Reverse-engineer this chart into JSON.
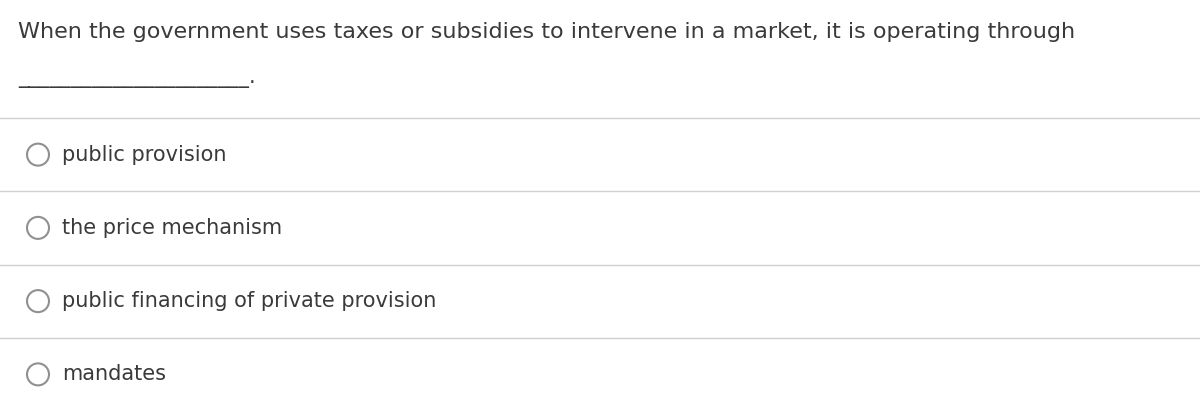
{
  "question_line1": "When the government uses taxes or subsidies to intervene in a market, it is operating through",
  "blank_line": "______________________.",
  "options": [
    "public provision",
    "the price mechanism",
    "public financing of private provision",
    "mandates"
  ],
  "bg_color": "#ffffff",
  "text_color": "#3a3a3a",
  "line_color": "#d0d0d0",
  "circle_color": "#909090",
  "font_size_question": 16,
  "font_size_option": 15,
  "font_size_blank": 15
}
